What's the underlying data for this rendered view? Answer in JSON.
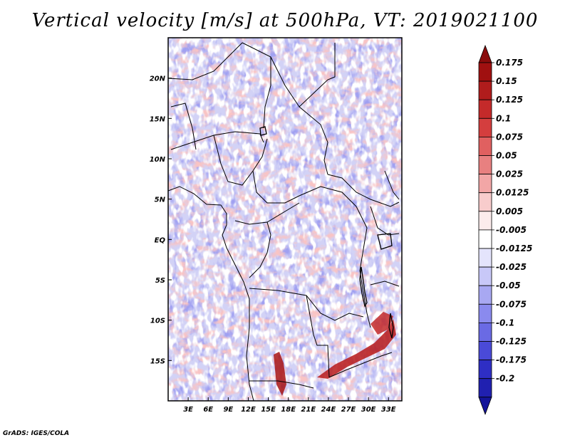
{
  "title": "Vertical velocity [m/s] at 500hPa, VT: 2019021100",
  "footer": "GrADS: IGES/COLA",
  "map": {
    "lon_range": [
      0,
      35
    ],
    "lat_range": [
      -20,
      25
    ],
    "lat_ticks": [
      {
        "value": 20,
        "label": "20N"
      },
      {
        "value": 15,
        "label": "15N"
      },
      {
        "value": 10,
        "label": "10N"
      },
      {
        "value": 5,
        "label": "5N"
      },
      {
        "value": 0,
        "label": "EQ"
      },
      {
        "value": -5,
        "label": "5S"
      },
      {
        "value": -10,
        "label": "10S"
      },
      {
        "value": -15,
        "label": "15S"
      }
    ],
    "lon_ticks": [
      {
        "value": 3,
        "label": "3E"
      },
      {
        "value": 6,
        "label": "6E"
      },
      {
        "value": 9,
        "label": "9E"
      },
      {
        "value": 12,
        "label": "12E"
      },
      {
        "value": 15,
        "label": "15E"
      },
      {
        "value": 18,
        "label": "18E"
      },
      {
        "value": 21,
        "label": "21E"
      },
      {
        "value": 24,
        "label": "24E"
      },
      {
        "value": 27,
        "label": "27E"
      },
      {
        "value": 30,
        "label": "30E"
      },
      {
        "value": 33,
        "label": "33E"
      }
    ]
  },
  "colorbar": {
    "levels": [
      {
        "label": "0.175",
        "color": "#a01010"
      },
      {
        "label": "0.15",
        "color": "#b01c1c"
      },
      {
        "label": "0.125",
        "color": "#c42a2a"
      },
      {
        "label": "0.1",
        "color": "#d43e3e"
      },
      {
        "label": "0.075",
        "color": "#e06060"
      },
      {
        "label": "0.05",
        "color": "#e88080"
      },
      {
        "label": "0.025",
        "color": "#f2a6a6"
      },
      {
        "label": "0.0125",
        "color": "#f8cccc"
      },
      {
        "label": "0.005",
        "color": "#fcecec"
      },
      {
        "label": "-0.005",
        "color": "#ffffff"
      },
      {
        "label": "-0.0125",
        "color": "#e4e4fc"
      },
      {
        "label": "-0.025",
        "color": "#c8c8f8"
      },
      {
        "label": "-0.05",
        "color": "#a8a8f2"
      },
      {
        "label": "-0.075",
        "color": "#8a8aee"
      },
      {
        "label": "-0.1",
        "color": "#6a6ae4"
      },
      {
        "label": "-0.125",
        "color": "#4a4ad8"
      },
      {
        "label": "-0.175",
        "color": "#2e2ec4"
      },
      {
        "label": "-0.2",
        "color": "#2020b0"
      }
    ],
    "top_color": "#8a0c0c",
    "bottom_color": "#14149a"
  },
  "colors": {
    "positive_bg": "#f4c0c0",
    "negative_bg": "#c4c4f4",
    "strong_positive": "#a01010",
    "strong_negative": "#2020b0"
  }
}
